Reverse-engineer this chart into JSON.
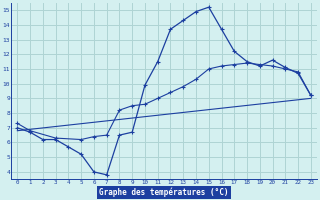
{
  "line1_x": [
    0,
    1,
    2,
    3,
    4,
    5,
    6,
    7,
    8,
    9,
    10,
    11,
    12,
    13,
    14,
    15,
    16,
    17,
    18,
    19,
    20,
    21,
    22,
    23
  ],
  "line1_y": [
    7.0,
    6.7,
    6.2,
    6.2,
    5.7,
    5.2,
    4.0,
    3.8,
    6.5,
    6.7,
    9.9,
    11.5,
    13.7,
    14.3,
    14.9,
    15.2,
    13.7,
    12.2,
    11.5,
    11.2,
    11.6,
    11.1,
    10.7,
    9.2
  ],
  "line2_x": [
    0,
    1,
    3,
    5,
    6,
    7,
    8,
    9,
    10,
    11,
    12,
    13,
    14,
    15,
    16,
    17,
    18,
    19,
    20,
    21,
    22,
    23
  ],
  "line2_y": [
    7.3,
    6.8,
    6.3,
    6.2,
    6.4,
    6.5,
    8.2,
    8.5,
    8.6,
    9.0,
    9.4,
    9.8,
    10.3,
    11.0,
    11.2,
    11.3,
    11.4,
    11.3,
    11.2,
    11.0,
    10.8,
    9.2
  ],
  "line3_x": [
    0,
    23
  ],
  "line3_y": [
    6.8,
    9.0
  ],
  "line_color": "#1c3fa0",
  "bg_color": "#d4f0f0",
  "grid_color": "#aed4d4",
  "xlabel": "Graphe des températures (°C)",
  "xlabel_bg": "#1c3fa0",
  "xlabel_color": "#ffffff",
  "xlim": [
    -0.5,
    23.5
  ],
  "ylim": [
    3.5,
    15.5
  ],
  "yticks": [
    4,
    5,
    6,
    7,
    8,
    9,
    10,
    11,
    12,
    13,
    14,
    15
  ],
  "xticks": [
    0,
    1,
    2,
    3,
    4,
    5,
    6,
    7,
    8,
    9,
    10,
    11,
    12,
    13,
    14,
    15,
    16,
    17,
    18,
    19,
    20,
    21,
    22,
    23
  ]
}
